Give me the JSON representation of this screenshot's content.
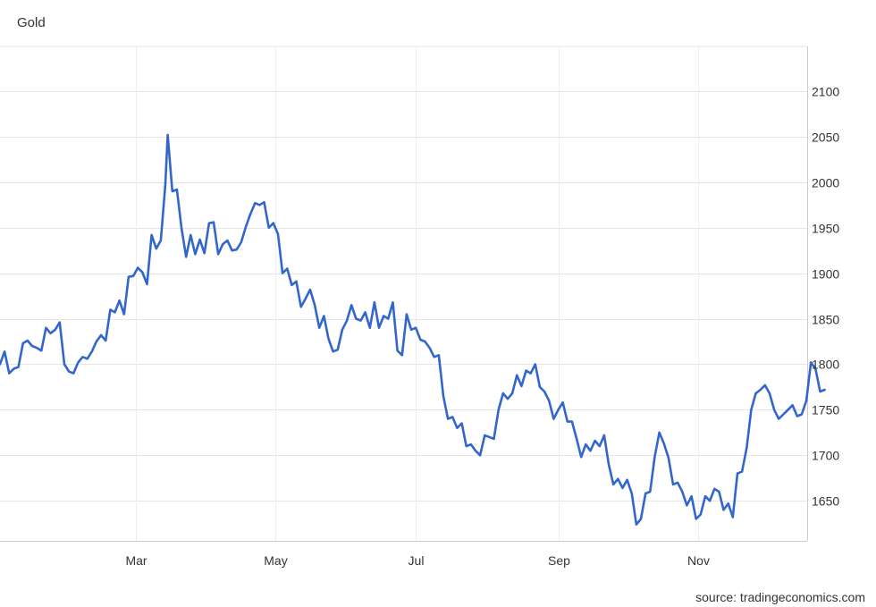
{
  "chart_data": {
    "type": "line",
    "title": "Gold",
    "source": "source: tradingeconomics.com",
    "xlabel": "",
    "ylabel": "",
    "ylim": [
      1605,
      2150
    ],
    "y_ticks": [
      1650,
      1700,
      1750,
      1800,
      1850,
      1900,
      1950,
      2000,
      2050,
      2100
    ],
    "x_ticks": [
      {
        "label": "Mar",
        "x": 59
      },
      {
        "label": "May",
        "x": 120
      },
      {
        "label": "Jul",
        "x": 181
      },
      {
        "label": "Sep",
        "x": 243
      },
      {
        "label": "Nov",
        "x": 304
      }
    ],
    "x_domain": [
      0,
      350
    ],
    "grid": true,
    "line_color": "#3366cc",
    "series": [
      {
        "name": "",
        "points": [
          [
            0,
            1800
          ],
          [
            2,
            1814
          ],
          [
            4,
            1790
          ],
          [
            6,
            1795
          ],
          [
            8,
            1797
          ],
          [
            10,
            1823
          ],
          [
            12,
            1826
          ],
          [
            14,
            1820
          ],
          [
            16,
            1818
          ],
          [
            18,
            1815
          ],
          [
            20,
            1840
          ],
          [
            22,
            1834
          ],
          [
            24,
            1838
          ],
          [
            26,
            1846
          ],
          [
            28,
            1800
          ],
          [
            30,
            1792
          ],
          [
            32,
            1790
          ],
          [
            34,
            1802
          ],
          [
            36,
            1808
          ],
          [
            38,
            1806
          ],
          [
            40,
            1814
          ],
          [
            42,
            1825
          ],
          [
            44,
            1832
          ],
          [
            46,
            1826
          ],
          [
            48,
            1860
          ],
          [
            50,
            1857
          ],
          [
            52,
            1870
          ],
          [
            54,
            1855
          ],
          [
            56,
            1896
          ],
          [
            58,
            1897
          ],
          [
            60,
            1906
          ],
          [
            62,
            1901
          ],
          [
            64,
            1888
          ],
          [
            66,
            1942
          ],
          [
            68,
            1927
          ],
          [
            70,
            1936
          ],
          [
            72,
            1998
          ],
          [
            73,
            2052
          ],
          [
            75,
            1990
          ],
          [
            77,
            1992
          ],
          [
            79,
            1950
          ],
          [
            81,
            1918
          ],
          [
            83,
            1942
          ],
          [
            85,
            1921
          ],
          [
            87,
            1937
          ],
          [
            89,
            1922
          ],
          [
            91,
            1955
          ],
          [
            93,
            1956
          ],
          [
            95,
            1921
          ],
          [
            97,
            1932
          ],
          [
            99,
            1936
          ],
          [
            101,
            1925
          ],
          [
            103,
            1926
          ],
          [
            105,
            1934
          ],
          [
            107,
            1951
          ],
          [
            109,
            1965
          ],
          [
            111,
            1977
          ],
          [
            113,
            1975
          ],
          [
            115,
            1978
          ],
          [
            117,
            1950
          ],
          [
            119,
            1955
          ],
          [
            121,
            1943
          ],
          [
            123,
            1900
          ],
          [
            125,
            1905
          ],
          [
            127,
            1887
          ],
          [
            129,
            1891
          ],
          [
            131,
            1863
          ],
          [
            133,
            1872
          ],
          [
            135,
            1882
          ],
          [
            137,
            1865
          ],
          [
            139,
            1840
          ],
          [
            141,
            1853
          ],
          [
            143,
            1828
          ],
          [
            145,
            1814
          ],
          [
            147,
            1816
          ],
          [
            149,
            1838
          ],
          [
            151,
            1848
          ],
          [
            153,
            1865
          ],
          [
            155,
            1850
          ],
          [
            157,
            1848
          ],
          [
            159,
            1857
          ],
          [
            161,
            1840
          ],
          [
            163,
            1868
          ],
          [
            165,
            1840
          ],
          [
            167,
            1853
          ],
          [
            169,
            1850
          ],
          [
            171,
            1868
          ],
          [
            173,
            1815
          ],
          [
            175,
            1810
          ],
          [
            177,
            1855
          ],
          [
            179,
            1838
          ],
          [
            181,
            1840
          ],
          [
            183,
            1827
          ],
          [
            185,
            1825
          ],
          [
            187,
            1818
          ],
          [
            189,
            1808
          ],
          [
            191,
            1810
          ],
          [
            193,
            1765
          ],
          [
            195,
            1740
          ],
          [
            197,
            1742
          ],
          [
            199,
            1730
          ],
          [
            201,
            1735
          ],
          [
            203,
            1710
          ],
          [
            205,
            1712
          ],
          [
            207,
            1705
          ],
          [
            209,
            1700
          ],
          [
            211,
            1722
          ],
          [
            213,
            1720
          ],
          [
            215,
            1718
          ],
          [
            217,
            1750
          ],
          [
            219,
            1768
          ],
          [
            221,
            1762
          ],
          [
            223,
            1768
          ],
          [
            225,
            1788
          ],
          [
            227,
            1776
          ],
          [
            229,
            1793
          ],
          [
            231,
            1790
          ],
          [
            233,
            1800
          ],
          [
            235,
            1775
          ],
          [
            237,
            1770
          ],
          [
            239,
            1760
          ],
          [
            241,
            1740
          ],
          [
            243,
            1750
          ],
          [
            245,
            1758
          ],
          [
            247,
            1737
          ],
          [
            249,
            1737
          ],
          [
            251,
            1718
          ],
          [
            253,
            1698
          ],
          [
            255,
            1712
          ],
          [
            257,
            1705
          ],
          [
            259,
            1716
          ],
          [
            261,
            1710
          ],
          [
            263,
            1722
          ],
          [
            265,
            1690
          ],
          [
            267,
            1668
          ],
          [
            269,
            1674
          ],
          [
            271,
            1664
          ],
          [
            273,
            1673
          ],
          [
            275,
            1658
          ],
          [
            277,
            1624
          ],
          [
            279,
            1630
          ],
          [
            281,
            1658
          ],
          [
            283,
            1660
          ],
          [
            285,
            1698
          ],
          [
            287,
            1725
          ],
          [
            289,
            1713
          ],
          [
            291,
            1697
          ],
          [
            293,
            1668
          ],
          [
            295,
            1670
          ],
          [
            297,
            1660
          ],
          [
            299,
            1645
          ],
          [
            301,
            1655
          ],
          [
            303,
            1630
          ],
          [
            305,
            1635
          ],
          [
            307,
            1655
          ],
          [
            309,
            1650
          ],
          [
            311,
            1663
          ],
          [
            313,
            1660
          ],
          [
            315,
            1640
          ],
          [
            317,
            1647
          ],
          [
            319,
            1632
          ],
          [
            321,
            1680
          ],
          [
            323,
            1682
          ],
          [
            325,
            1708
          ],
          [
            327,
            1750
          ],
          [
            329,
            1768
          ],
          [
            331,
            1772
          ],
          [
            333,
            1777
          ],
          [
            335,
            1768
          ],
          [
            337,
            1750
          ],
          [
            339,
            1740
          ],
          [
            341,
            1745
          ],
          [
            343,
            1750
          ],
          [
            345,
            1755
          ],
          [
            347,
            1743
          ],
          [
            349,
            1745
          ],
          [
            351,
            1760
          ],
          [
            353,
            1802
          ],
          [
            355,
            1795
          ],
          [
            357,
            1770
          ],
          [
            359,
            1772
          ]
        ]
      }
    ]
  }
}
